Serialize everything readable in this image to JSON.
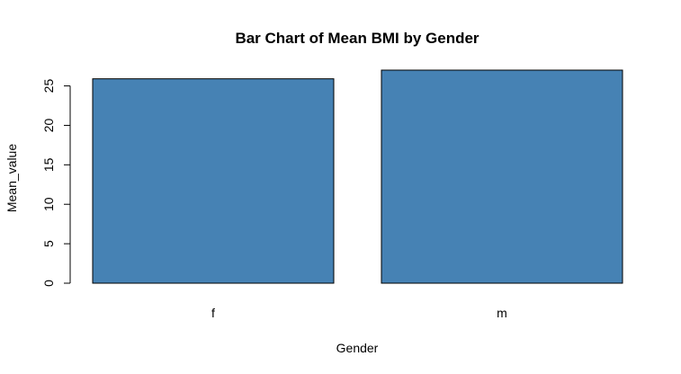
{
  "chart_data": {
    "type": "bar",
    "title": "Bar Chart of Mean BMI by Gender",
    "xlabel": "Gender",
    "ylabel": "Mean_value",
    "categories": [
      "f",
      "m"
    ],
    "values": [
      25.9,
      27.0
    ],
    "ylim": [
      0,
      27.0
    ],
    "yticks": [
      0,
      5,
      10,
      15,
      20,
      25
    ],
    "bar_color": "#4682B4",
    "grid": false,
    "legend": "none"
  }
}
